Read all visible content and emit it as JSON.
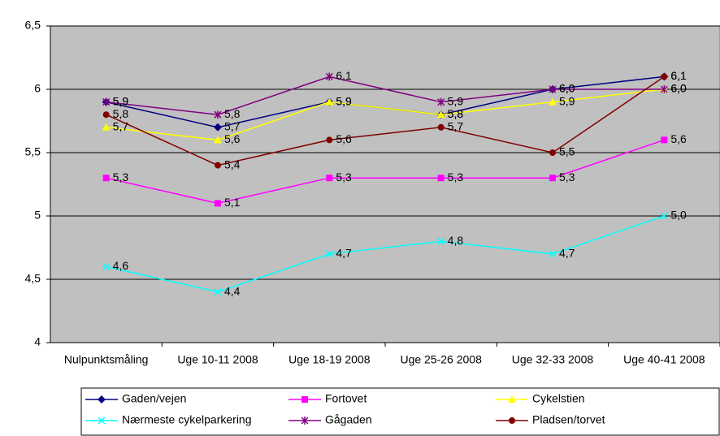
{
  "chart_data": {
    "type": "line",
    "categories": [
      "Nulpunktsmåling",
      "Uge 10-11 2008",
      "Uge 18-19 2008",
      "Uge 25-26 2008",
      "Uge 32-33 2008",
      "Uge 40-41 2008"
    ],
    "ylim": [
      4,
      6.5
    ],
    "yticks": [
      4,
      {
        "value": 4.5,
        "label": "4,5"
      },
      5,
      {
        "value": 5.5,
        "label": "5,5"
      },
      6,
      {
        "value": 6.5,
        "label": "6,5"
      }
    ],
    "grid": true,
    "legend": "bottom",
    "background": "#c0c0c0",
    "series": [
      {
        "name": "Gaden/vejen",
        "color": "#000080",
        "marker": "diamond",
        "values": [
          5.9,
          5.7,
          5.9,
          5.8,
          6.0,
          6.1
        ],
        "value_labels": [
          "5,9",
          "5,7",
          "5,9",
          "5,8",
          "6,0",
          "6,1"
        ]
      },
      {
        "name": "Fortovet",
        "color": "#ff00ff",
        "marker": "square",
        "values": [
          5.3,
          5.1,
          5.3,
          5.3,
          5.3,
          5.6
        ],
        "value_labels": [
          "5,3",
          "5,1",
          "5,3",
          "5,3",
          "5,3",
          "5,6"
        ]
      },
      {
        "name": "Cykelstien",
        "color": "#ffff00",
        "marker": "triangle",
        "values": [
          5.7,
          5.6,
          5.9,
          5.8,
          5.9,
          6.0
        ],
        "value_labels": [
          "5,7",
          "5,6",
          "5,9",
          "5,8",
          "5,9",
          "6,0"
        ]
      },
      {
        "name": "Nærmeste cykelparkering",
        "color": "#00ffff",
        "marker": "x",
        "values": [
          4.6,
          4.4,
          4.7,
          4.8,
          4.7,
          5.0
        ],
        "value_labels": [
          "4,6",
          "4,4",
          "4,7",
          "4,8",
          "4,7",
          "5,0"
        ]
      },
      {
        "name": "Gågaden",
        "color": "#800080",
        "marker": "star",
        "values": [
          5.9,
          5.8,
          6.1,
          5.9,
          6.0,
          6.0
        ],
        "value_labels": [
          "5,9",
          "5,8",
          "6,1",
          "5,9",
          "6,0",
          "6,0"
        ]
      },
      {
        "name": "Pladsen/torvet",
        "color": "#800000",
        "marker": "circle",
        "values": [
          5.8,
          5.4,
          5.6,
          5.7,
          5.5,
          6.1
        ],
        "value_labels": [
          "5,8",
          "5,4",
          "5,6",
          "5,7",
          "5,5",
          "6,1"
        ]
      }
    ]
  }
}
